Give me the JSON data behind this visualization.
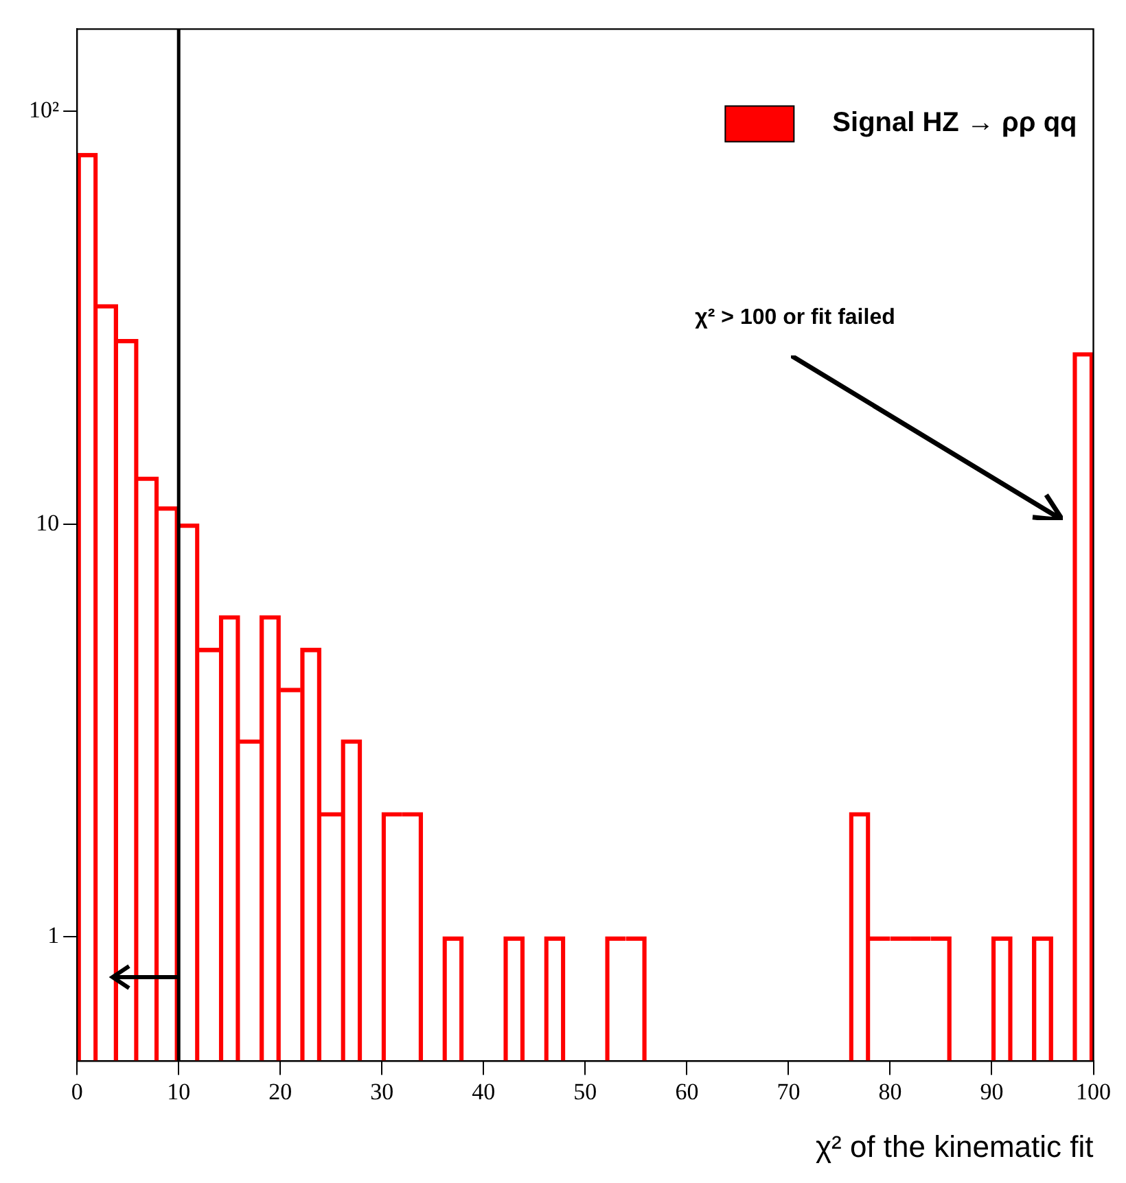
{
  "chart_data": {
    "type": "bar",
    "xlabel": "χ² of the kinematic fit",
    "series": [
      {
        "name": "Signal HZ → ρρ qq",
        "color": "#ff0000",
        "x": [
          1,
          3,
          5,
          7,
          9,
          11,
          13,
          15,
          17,
          19,
          21,
          23,
          25,
          27,
          29,
          31,
          33,
          35,
          37,
          39,
          41,
          43,
          45,
          47,
          49,
          51,
          53,
          55,
          57,
          59,
          61,
          63,
          65,
          67,
          69,
          71,
          73,
          75,
          77,
          79,
          81,
          83,
          85,
          87,
          89,
          91,
          93,
          95,
          97,
          99
        ],
        "values": [
          79,
          34,
          28,
          13,
          11,
          10,
          5,
          6,
          3,
          6,
          4,
          5,
          2,
          3,
          null,
          2,
          2,
          null,
          1,
          null,
          null,
          1,
          null,
          1,
          null,
          null,
          1,
          1,
          null,
          null,
          null,
          null,
          null,
          null,
          null,
          null,
          null,
          null,
          2,
          1,
          1,
          1,
          1,
          null,
          null,
          1,
          null,
          1,
          null,
          26
        ]
      }
    ],
    "log": true,
    "xlim": [
      0,
      100
    ],
    "xticks": [
      0,
      10,
      20,
      30,
      40,
      50,
      60,
      70,
      80,
      90,
      100
    ],
    "ylim": [
      0.5,
      158
    ],
    "yticks": [
      1,
      10,
      {
        "value": 100,
        "label": "10²"
      }
    ],
    "grid": false,
    "legend": "top right",
    "ref_lines": [
      {
        "axis": "x",
        "value": 10,
        "color": "#000000"
      }
    ],
    "annotations": [
      "χ² > 100 or fit failed"
    ]
  }
}
